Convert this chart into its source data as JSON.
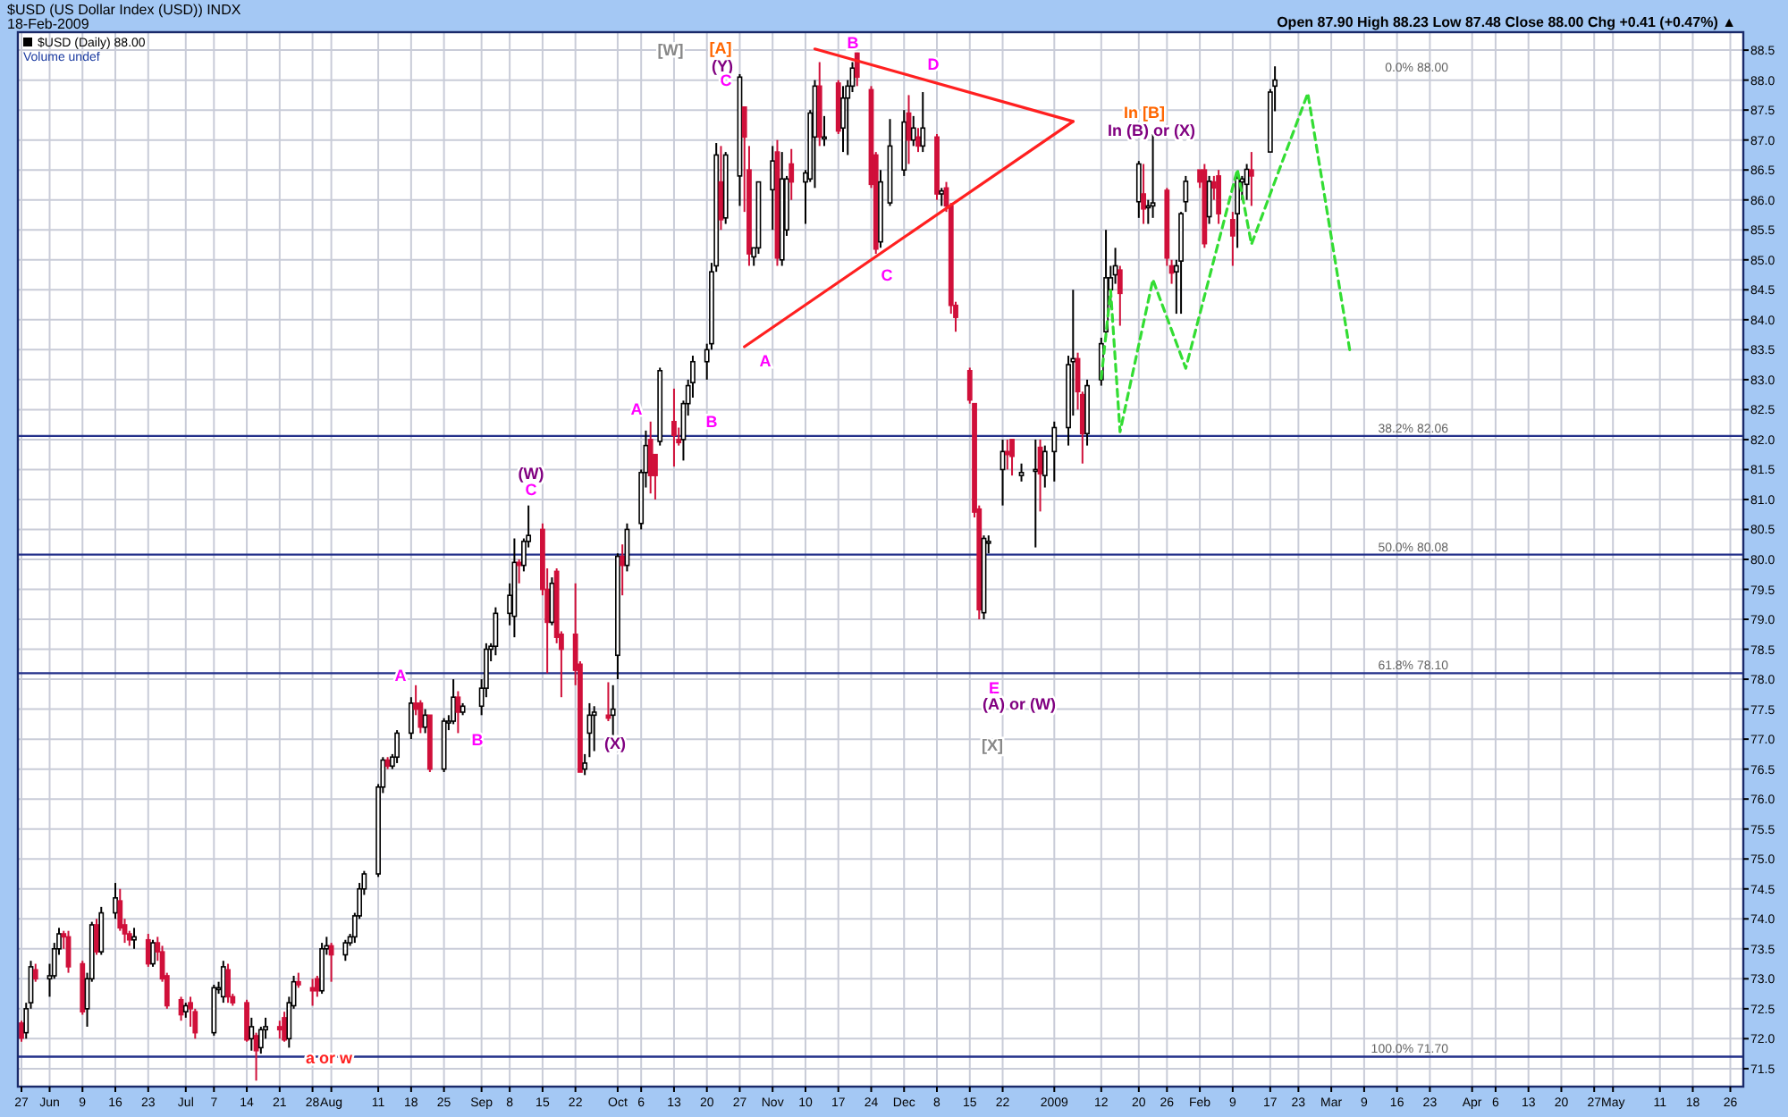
{
  "chart_data": {
    "type": "candlestick",
    "title": "$USD (US Dollar Index (USD)) INDX",
    "subtitle": "18-Feb-2009",
    "x": [
      "2008-05-27",
      "2008-05-28",
      "2008-05-29",
      "2008-05-30",
      "2008-06-02",
      "2008-06-03",
      "2008-06-04",
      "2008-06-05",
      "2008-06-06",
      "2008-06-09",
      "2008-06-10",
      "2008-06-11",
      "2008-06-12",
      "2008-06-13",
      "2008-06-16",
      "2008-06-17",
      "2008-06-18",
      "2008-06-19",
      "2008-06-20",
      "2008-06-23",
      "2008-06-24",
      "2008-06-25",
      "2008-06-26",
      "2008-06-27",
      "2008-06-30",
      "2008-07-01",
      "2008-07-02",
      "2008-07-03",
      "2008-07-07",
      "2008-07-08",
      "2008-07-09",
      "2008-07-10",
      "2008-07-11",
      "2008-07-14",
      "2008-07-15",
      "2008-07-16",
      "2008-07-17",
      "2008-07-18",
      "2008-07-21",
      "2008-07-22",
      "2008-07-23",
      "2008-07-24",
      "2008-07-25",
      "2008-07-28",
      "2008-07-29",
      "2008-07-30",
      "2008-07-31",
      "2008-08-01",
      "2008-08-04",
      "2008-08-05",
      "2008-08-06",
      "2008-08-07",
      "2008-08-08",
      "2008-08-11",
      "2008-08-12",
      "2008-08-13",
      "2008-08-14",
      "2008-08-15",
      "2008-08-18",
      "2008-08-19",
      "2008-08-20",
      "2008-08-21",
      "2008-08-22",
      "2008-08-25",
      "2008-08-26",
      "2008-08-27",
      "2008-08-28",
      "2008-08-29",
      "2008-09-02",
      "2008-09-03",
      "2008-09-04",
      "2008-09-05",
      "2008-09-08",
      "2008-09-09",
      "2008-09-10",
      "2008-09-11",
      "2008-09-12",
      "2008-09-15",
      "2008-09-16",
      "2008-09-17",
      "2008-09-18",
      "2008-09-19",
      "2008-09-22",
      "2008-09-23",
      "2008-09-24",
      "2008-09-25",
      "2008-09-26",
      "2008-09-29",
      "2008-09-30",
      "2008-10-01",
      "2008-10-02",
      "2008-10-03",
      "2008-10-06",
      "2008-10-07",
      "2008-10-08",
      "2008-10-09",
      "2008-10-10",
      "2008-10-13",
      "2008-10-14",
      "2008-10-15",
      "2008-10-16",
      "2008-10-17",
      "2008-10-20",
      "2008-10-21",
      "2008-10-22",
      "2008-10-23",
      "2008-10-24",
      "2008-10-27",
      "2008-10-28",
      "2008-10-29",
      "2008-10-30",
      "2008-10-31",
      "2008-11-03",
      "2008-11-04",
      "2008-11-05",
      "2008-11-06",
      "2008-11-07",
      "2008-11-10",
      "2008-11-11",
      "2008-11-12",
      "2008-11-13",
      "2008-11-14",
      "2008-11-17",
      "2008-11-18",
      "2008-11-19",
      "2008-11-20",
      "2008-11-21",
      "2008-11-24",
      "2008-11-25",
      "2008-11-26",
      "2008-11-28",
      "2008-12-01",
      "2008-12-02",
      "2008-12-03",
      "2008-12-04",
      "2008-12-05",
      "2008-12-08",
      "2008-12-09",
      "2008-12-10",
      "2008-12-11",
      "2008-12-12",
      "2008-12-15",
      "2008-12-16",
      "2008-12-17",
      "2008-12-18",
      "2008-12-19",
      "2008-12-22",
      "2008-12-23",
      "2008-12-24",
      "2008-12-26",
      "2008-12-29",
      "2008-12-30",
      "2008-12-31",
      "2009-01-02",
      "2009-01-05",
      "2009-01-06",
      "2009-01-07",
      "2009-01-08",
      "2009-01-09",
      "2009-01-12",
      "2009-01-13",
      "2009-01-14",
      "2009-01-15",
      "2009-01-16",
      "2009-01-20",
      "2009-01-21",
      "2009-01-22",
      "2009-01-23",
      "2009-01-26",
      "2009-01-27",
      "2009-01-28",
      "2009-01-29",
      "2009-01-30",
      "2009-02-02",
      "2009-02-03",
      "2009-02-04",
      "2009-02-05",
      "2009-02-06",
      "2009-02-09",
      "2009-02-10",
      "2009-02-11",
      "2009-02-12",
      "2009-02-13",
      "2009-02-17",
      "2009-02-18"
    ],
    "ohlc": [
      [
        72.26,
        72.3,
        71.95,
        72.01
      ],
      [
        72.1,
        72.6,
        72.0,
        72.5
      ],
      [
        72.6,
        73.3,
        72.5,
        73.2
      ],
      [
        73.15,
        73.25,
        72.95,
        73.0
      ],
      [
        73.0,
        73.25,
        72.7,
        73.05
      ],
      [
        73.05,
        73.6,
        73.0,
        73.5
      ],
      [
        73.5,
        73.85,
        73.4,
        73.75
      ],
      [
        73.75,
        73.8,
        73.5,
        73.7
      ],
      [
        73.7,
        73.8,
        73.1,
        73.2
      ],
      [
        73.25,
        73.3,
        72.4,
        72.45
      ],
      [
        72.5,
        73.1,
        72.2,
        73.0
      ],
      [
        73.0,
        73.95,
        72.95,
        73.9
      ],
      [
        73.9,
        74.0,
        73.4,
        73.45
      ],
      [
        73.45,
        74.2,
        73.4,
        74.1
      ],
      [
        74.1,
        74.6,
        74.0,
        74.35
      ],
      [
        74.3,
        74.5,
        73.8,
        73.85
      ],
      [
        73.9,
        74.0,
        73.6,
        73.75
      ],
      [
        73.75,
        73.8,
        73.55,
        73.65
      ],
      [
        73.65,
        73.85,
        73.5,
        73.7
      ],
      [
        73.65,
        73.75,
        73.2,
        73.25
      ],
      [
        73.25,
        73.65,
        73.2,
        73.6
      ],
      [
        73.6,
        73.7,
        73.3,
        73.45
      ],
      [
        73.45,
        73.55,
        72.95,
        73.0
      ],
      [
        73.05,
        73.1,
        72.5,
        72.55
      ],
      [
        72.65,
        72.7,
        72.3,
        72.4
      ],
      [
        72.45,
        72.6,
        72.35,
        72.55
      ],
      [
        72.6,
        72.7,
        72.2,
        72.5
      ],
      [
        72.45,
        72.5,
        72.0,
        72.1
      ],
      [
        72.1,
        72.9,
        72.05,
        72.85
      ],
      [
        72.85,
        72.95,
        72.75,
        72.85
      ],
      [
        72.7,
        73.3,
        72.6,
        73.2
      ],
      [
        73.15,
        73.25,
        72.6,
        72.7
      ],
      [
        72.7,
        72.75,
        72.55,
        72.6
      ],
      [
        72.6,
        72.65,
        71.95,
        71.98
      ],
      [
        72.0,
        72.35,
        71.8,
        72.2
      ],
      [
        72.05,
        72.1,
        71.3,
        71.8
      ],
      [
        71.85,
        72.2,
        71.75,
        72.15
      ],
      [
        72.15,
        72.35,
        72.0,
        72.2
      ],
      [
        72.2,
        72.3,
        72.0,
        72.15
      ],
      [
        72.35,
        72.45,
        71.95,
        71.98
      ],
      [
        72.0,
        72.7,
        71.85,
        72.6
      ],
      [
        72.55,
        73.05,
        72.5,
        72.95
      ],
      [
        72.95,
        73.1,
        72.85,
        72.9
      ],
      [
        72.85,
        73.0,
        72.55,
        72.8
      ],
      [
        73.0,
        73.05,
        72.7,
        72.8
      ],
      [
        72.8,
        73.6,
        72.75,
        73.5
      ],
      [
        73.5,
        73.7,
        73.4,
        73.55
      ],
      [
        73.55,
        73.6,
        72.95,
        73.4
      ],
      [
        73.4,
        73.65,
        73.3,
        73.6
      ],
      [
        73.6,
        73.75,
        73.55,
        73.7
      ],
      [
        73.7,
        74.1,
        73.6,
        74.05
      ],
      [
        74.05,
        74.6,
        74.0,
        74.5
      ],
      [
        74.5,
        74.8,
        74.4,
        74.75
      ],
      [
        74.75,
        76.25,
        74.7,
        76.2
      ],
      [
        76.2,
        76.7,
        76.1,
        76.65
      ],
      [
        76.65,
        76.7,
        76.5,
        76.55
      ],
      [
        76.55,
        76.75,
        76.5,
        76.7
      ],
      [
        76.7,
        77.15,
        76.6,
        77.1
      ],
      [
        77.1,
        77.7,
        77.0,
        77.6
      ],
      [
        77.6,
        77.9,
        77.4,
        77.5
      ],
      [
        77.6,
        77.65,
        77.1,
        77.2
      ],
      [
        77.2,
        77.5,
        77.1,
        77.4
      ],
      [
        77.4,
        77.4,
        76.45,
        76.5
      ],
      [
        76.5,
        77.35,
        76.45,
        77.3
      ],
      [
        77.3,
        77.4,
        77.15,
        77.3
      ],
      [
        77.3,
        78.0,
        77.25,
        77.7
      ],
      [
        77.7,
        77.8,
        77.1,
        77.45
      ],
      [
        77.45,
        77.6,
        77.4,
        77.55
      ],
      [
        77.55,
        78.0,
        77.4,
        77.85
      ],
      [
        77.85,
        78.6,
        77.7,
        78.5
      ],
      [
        78.5,
        78.6,
        78.3,
        78.55
      ],
      [
        78.55,
        79.2,
        78.4,
        79.1
      ],
      [
        79.1,
        79.6,
        78.9,
        79.4
      ],
      [
        79.05,
        80.35,
        78.7,
        79.95
      ],
      [
        79.95,
        80.0,
        79.6,
        79.9
      ],
      [
        79.9,
        80.35,
        79.8,
        80.3
      ],
      [
        80.3,
        80.9,
        80.2,
        80.4
      ],
      [
        80.5,
        80.6,
        79.4,
        79.5
      ],
      [
        79.5,
        79.85,
        78.1,
        78.95
      ],
      [
        78.95,
        79.7,
        78.9,
        79.6
      ],
      [
        79.8,
        79.85,
        78.6,
        78.7
      ],
      [
        78.75,
        78.8,
        77.7,
        78.5
      ],
      [
        78.75,
        79.6,
        77.9,
        78.15
      ],
      [
        78.25,
        78.3,
        76.45,
        76.45
      ],
      [
        76.5,
        76.75,
        76.4,
        76.6
      ],
      [
        77.1,
        77.6,
        76.7,
        77.4
      ],
      [
        77.4,
        77.55,
        76.8,
        77.45
      ],
      [
        77.4,
        77.95,
        77.3,
        77.35
      ],
      [
        77.4,
        77.9,
        77.0,
        77.5
      ],
      [
        78.4,
        80.1,
        78.0,
        80.05
      ],
      [
        80.05,
        80.25,
        79.4,
        79.9
      ],
      [
        79.9,
        80.6,
        79.8,
        80.5
      ],
      [
        80.6,
        81.5,
        80.5,
        81.45
      ],
      [
        81.45,
        82.15,
        81.2,
        81.9
      ],
      [
        82.0,
        82.3,
        81.1,
        81.4
      ],
      [
        81.75,
        81.75,
        81.0,
        81.4
      ],
      [
        81.97,
        83.2,
        81.9,
        83.15
      ],
      [
        82.3,
        82.85,
        81.55,
        82.07
      ],
      [
        82.0,
        82.2,
        81.9,
        81.95
      ],
      [
        82.0,
        82.65,
        81.65,
        82.6
      ],
      [
        82.6,
        83.0,
        82.4,
        82.9
      ],
      [
        82.95,
        83.4,
        82.7,
        83.3
      ],
      [
        83.3,
        83.6,
        83.0,
        83.5
      ],
      [
        83.6,
        84.95,
        83.5,
        84.8
      ],
      [
        84.9,
        86.95,
        84.8,
        86.75
      ],
      [
        86.3,
        86.9,
        85.5,
        85.67
      ],
      [
        85.7,
        86.8,
        85.6,
        86.75
      ],
      [
        86.4,
        88.1,
        85.9,
        88.05
      ],
      [
        87.55,
        87.55,
        85.8,
        87.05
      ],
      [
        86.5,
        86.9,
        84.9,
        85.1
      ],
      [
        85.05,
        85.2,
        84.9,
        85.2
      ],
      [
        85.2,
        86.3,
        85.1,
        86.3
      ],
      [
        86.17,
        86.9,
        85.5,
        86.65
      ],
      [
        86.8,
        87.0,
        84.9,
        85.03
      ],
      [
        85.0,
        86.8,
        84.9,
        86.35
      ],
      [
        85.5,
        86.4,
        85.4,
        86.35
      ],
      [
        86.6,
        86.85,
        86.0,
        86.3
      ],
      [
        86.3,
        86.5,
        85.6,
        86.45
      ],
      [
        86.35,
        87.5,
        86.3,
        87.45
      ],
      [
        87.05,
        88.0,
        86.2,
        87.9
      ],
      [
        87.9,
        88.3,
        86.9,
        87.05
      ],
      [
        87.05,
        87.4,
        86.9,
        87.05
      ],
      [
        87.95,
        88.0,
        87.1,
        87.15
      ],
      [
        87.2,
        87.9,
        86.8,
        87.7
      ],
      [
        87.7,
        88.0,
        86.75,
        87.9
      ],
      [
        87.9,
        88.3,
        87.8,
        88.2
      ],
      [
        88.45,
        88.46,
        87.9,
        88.05
      ],
      [
        87.84,
        87.9,
        86.2,
        86.26
      ],
      [
        86.75,
        86.8,
        85.1,
        85.18
      ],
      [
        85.3,
        86.5,
        85.2,
        86.3
      ],
      [
        85.95,
        87.35,
        85.9,
        86.9
      ],
      [
        86.5,
        87.5,
        86.4,
        87.3
      ],
      [
        87.45,
        87.75,
        86.6,
        87.0
      ],
      [
        87.0,
        87.4,
        86.9,
        87.2
      ],
      [
        87.05,
        87.2,
        86.8,
        86.9
      ],
      [
        86.9,
        87.8,
        86.8,
        87.2
      ],
      [
        87.05,
        87.1,
        86.0,
        86.1
      ],
      [
        86.1,
        86.2,
        85.9,
        86.15
      ],
      [
        86.2,
        86.3,
        85.8,
        85.9
      ],
      [
        85.9,
        85.95,
        84.1,
        84.24
      ],
      [
        84.24,
        84.3,
        83.8,
        84.04
      ],
      [
        83.15,
        83.2,
        82.6,
        82.66
      ],
      [
        82.6,
        82.6,
        80.7,
        80.79
      ],
      [
        80.84,
        80.9,
        79.0,
        79.16
      ],
      [
        79.11,
        80.4,
        79.0,
        80.35
      ],
      [
        80.3,
        80.4,
        80.1,
        80.3
      ],
      [
        81.5,
        82.0,
        80.9,
        81.8
      ],
      [
        81.8,
        82.0,
        81.5,
        81.75
      ],
      [
        82.0,
        82.0,
        81.4,
        81.72
      ],
      [
        81.4,
        81.6,
        81.3,
        81.45
      ],
      [
        81.5,
        82.0,
        80.2,
        81.5
      ],
      [
        81.87,
        82.0,
        80.8,
        81.43
      ],
      [
        81.4,
        81.9,
        81.2,
        81.8
      ],
      [
        81.8,
        82.3,
        81.3,
        82.2
      ],
      [
        82.2,
        83.4,
        81.9,
        83.25
      ],
      [
        83.3,
        84.5,
        82.4,
        83.35
      ],
      [
        83.35,
        83.45,
        82.5,
        82.8
      ],
      [
        82.75,
        82.8,
        81.6,
        82.1
      ],
      [
        82.1,
        83.0,
        81.9,
        82.9
      ],
      [
        83.0,
        83.7,
        82.9,
        83.6
      ],
      [
        83.8,
        85.5,
        83.7,
        84.7
      ],
      [
        84.5,
        84.9,
        84.2,
        84.7
      ],
      [
        84.75,
        85.2,
        84.6,
        84.9
      ],
      [
        84.83,
        84.9,
        83.9,
        84.44
      ],
      [
        85.97,
        86.65,
        85.7,
        86.6
      ],
      [
        86.1,
        86.6,
        85.6,
        85.85
      ],
      [
        85.9,
        86.0,
        85.6,
        85.9
      ],
      [
        85.9,
        87.1,
        85.7,
        85.95
      ],
      [
        86.16,
        86.2,
        84.9,
        85.03
      ],
      [
        84.9,
        85.0,
        84.6,
        84.78
      ],
      [
        84.8,
        85.0,
        84.1,
        84.9
      ],
      [
        84.98,
        85.8,
        84.1,
        85.77
      ],
      [
        85.97,
        86.4,
        85.8,
        86.31
      ],
      [
        86.5,
        86.5,
        86.2,
        86.3
      ],
      [
        86.5,
        86.6,
        85.2,
        85.27
      ],
      [
        85.72,
        86.4,
        85.6,
        86.31
      ],
      [
        86.3,
        86.4,
        86.0,
        86.2
      ],
      [
        86.4,
        86.5,
        85.6,
        85.77
      ],
      [
        85.67,
        85.8,
        84.9,
        85.4
      ],
      [
        85.77,
        86.4,
        85.2,
        86.36
      ],
      [
        86.3,
        86.4,
        86.0,
        86.35
      ],
      [
        86.26,
        86.6,
        86.0,
        86.51
      ],
      [
        86.5,
        86.8,
        85.9,
        86.4
      ],
      [
        86.8,
        87.85,
        86.8,
        87.8
      ],
      [
        87.9,
        88.23,
        87.48,
        88.0
      ]
    ],
    "series": [
      {
        "type": "line",
        "color": "#ff2020",
        "x": [
          "2008-11-12",
          "2009-01-06"
        ],
        "values": [
          88.52,
          87.31
        ]
      },
      {
        "type": "line",
        "color": "#ff2020",
        "x": [
          "2008-10-28",
          "2009-01-06"
        ],
        "values": [
          83.55,
          87.31
        ]
      },
      {
        "type": "line",
        "color": "#33dd33",
        "line_style": "dashed",
        "x": [
          "2009-01-12",
          "2009-01-14",
          "2009-01-16",
          "2009-01-23",
          "2009-01-30",
          "2009-02-10",
          "2009-02-13",
          "2009-02-25",
          "2009-03-06"
        ],
        "values": [
          83.02,
          84.49,
          82.13,
          84.67,
          83.19,
          86.51,
          85.26,
          87.78,
          83.46
        ]
      }
    ],
    "xlim": [
      "2008-05-27",
      "2009-05-28"
    ],
    "ylim": [
      71.2,
      88.8
    ],
    "xticks": [
      {
        "value": "2008-05-27",
        "label": "27"
      },
      {
        "value": "2008-06-02",
        "label": "Jun"
      },
      {
        "value": "2008-06-09",
        "label": "9"
      },
      {
        "value": "2008-06-16",
        "label": "16"
      },
      {
        "value": "2008-06-23",
        "label": "23"
      },
      {
        "value": "2008-07-01",
        "label": "Jul"
      },
      {
        "value": "2008-07-07",
        "label": "7"
      },
      {
        "value": "2008-07-14",
        "label": "14"
      },
      {
        "value": "2008-07-21",
        "label": "21"
      },
      {
        "value": "2008-07-28",
        "label": "28"
      },
      {
        "value": "2008-08-01",
        "label": "Aug"
      },
      {
        "value": "2008-08-11",
        "label": "11"
      },
      {
        "value": "2008-08-18",
        "label": "18"
      },
      {
        "value": "2008-08-25",
        "label": "25"
      },
      {
        "value": "2008-09-02",
        "label": "Sep"
      },
      {
        "value": "2008-09-08",
        "label": "8"
      },
      {
        "value": "2008-09-15",
        "label": "15"
      },
      {
        "value": "2008-09-22",
        "label": "22"
      },
      {
        "value": "2008-10-01",
        "label": "Oct"
      },
      {
        "value": "2008-10-06",
        "label": "6"
      },
      {
        "value": "2008-10-13",
        "label": "13"
      },
      {
        "value": "2008-10-20",
        "label": "20"
      },
      {
        "value": "2008-10-27",
        "label": "27"
      },
      {
        "value": "2008-11-03",
        "label": "Nov"
      },
      {
        "value": "2008-11-10",
        "label": "10"
      },
      {
        "value": "2008-11-17",
        "label": "17"
      },
      {
        "value": "2008-11-24",
        "label": "24"
      },
      {
        "value": "2008-12-01",
        "label": "Dec"
      },
      {
        "value": "2008-12-08",
        "label": "8"
      },
      {
        "value": "2008-12-15",
        "label": "15"
      },
      {
        "value": "2008-12-22",
        "label": "22"
      },
      {
        "value": "2009-01-02",
        "label": "2009"
      },
      {
        "value": "2009-01-12",
        "label": "12"
      },
      {
        "value": "2009-01-20",
        "label": "20"
      },
      {
        "value": "2009-01-26",
        "label": "26"
      },
      {
        "value": "2009-02-02",
        "label": "Feb"
      },
      {
        "value": "2009-02-09",
        "label": "9"
      },
      {
        "value": "2009-02-17",
        "label": "17"
      },
      {
        "value": "2009-02-23",
        "label": "23"
      },
      {
        "value": "2009-03-02",
        "label": "Mar"
      },
      {
        "value": "2009-03-09",
        "label": "9"
      },
      {
        "value": "2009-03-16",
        "label": "16"
      },
      {
        "value": "2009-03-23",
        "label": "23"
      },
      {
        "value": "2009-04-01",
        "label": "Apr"
      },
      {
        "value": "2009-04-06",
        "label": "6"
      },
      {
        "value": "2009-04-13",
        "label": "13"
      },
      {
        "value": "2009-04-20",
        "label": "20"
      },
      {
        "value": "2009-04-27",
        "label": "27"
      },
      {
        "value": "2009-05-01",
        "label": "May"
      },
      {
        "value": "2009-05-11",
        "label": "11"
      },
      {
        "value": "2009-05-18",
        "label": "18"
      },
      {
        "value": "2009-05-26",
        "label": "26"
      }
    ],
    "yticks": [
      {
        "value": 71.5,
        "label": "71.5"
      },
      {
        "value": 72,
        "label": "72.0"
      },
      {
        "value": 72.5,
        "label": "72.5"
      },
      {
        "value": 73,
        "label": "73.0"
      },
      {
        "value": 73.5,
        "label": "73.5"
      },
      {
        "value": 74,
        "label": "74.0"
      },
      {
        "value": 74.5,
        "label": "74.5"
      },
      {
        "value": 75,
        "label": "75.0"
      },
      {
        "value": 75.5,
        "label": "75.5"
      },
      {
        "value": 76,
        "label": "76.0"
      },
      {
        "value": 76.5,
        "label": "76.5"
      },
      {
        "value": 77,
        "label": "77.0"
      },
      {
        "value": 77.5,
        "label": "77.5"
      },
      {
        "value": 78,
        "label": "78.0"
      },
      {
        "value": 78.5,
        "label": "78.5"
      },
      {
        "value": 79,
        "label": "79.0"
      },
      {
        "value": 79.5,
        "label": "79.5"
      },
      {
        "value": 80,
        "label": "80.0"
      },
      {
        "value": 80.5,
        "label": "80.5"
      },
      {
        "value": 81,
        "label": "81.0"
      },
      {
        "value": 81.5,
        "label": "81.5"
      },
      {
        "value": 82,
        "label": "82.0"
      },
      {
        "value": 82.5,
        "label": "82.5"
      },
      {
        "value": 83,
        "label": "83.0"
      },
      {
        "value": 83.5,
        "label": "83.5"
      },
      {
        "value": 84,
        "label": "84.0"
      },
      {
        "value": 84.5,
        "label": "84.5"
      },
      {
        "value": 85,
        "label": "85.0"
      },
      {
        "value": 85.5,
        "label": "85.5"
      },
      {
        "value": 86,
        "label": "86.0"
      },
      {
        "value": 86.5,
        "label": "86.5"
      },
      {
        "value": 87,
        "label": "87.0"
      },
      {
        "value": 87.5,
        "label": "87.5"
      },
      {
        "value": 88,
        "label": "88.0"
      },
      {
        "value": 88.5,
        "label": "88.5"
      }
    ],
    "grid": true,
    "ref_lines": [
      {
        "axis": "y",
        "value": 82.06,
        "label": "38.2% 82.06",
        "color": "#23308a"
      },
      {
        "axis": "y",
        "value": 80.08,
        "label": "50.0% 80.08",
        "color": "#23308a"
      },
      {
        "axis": "y",
        "value": 78.1,
        "label": "61.8% 78.10",
        "color": "#23308a"
      },
      {
        "axis": "y",
        "value": 71.7,
        "label": "100.0% 71.70",
        "color": "#23308a"
      }
    ],
    "annotations": [
      "[W]",
      "[A]",
      "(Y)",
      "C",
      "B",
      "D",
      "In [B]",
      "In (B) or (X)",
      "A",
      "C",
      "A",
      "B",
      "(W)",
      "C",
      "A",
      "B",
      "(X)",
      "E",
      "(A) or (W)",
      "[X]",
      "a or w",
      "Open 87.90 High 88.23 Low 87.48 Close 88.00 Chg +0.41 (+0.47%) ▲",
      "$USD (Daily) 88.00",
      "Volume undef",
      "0.0% 88.00"
    ]
  }
}
